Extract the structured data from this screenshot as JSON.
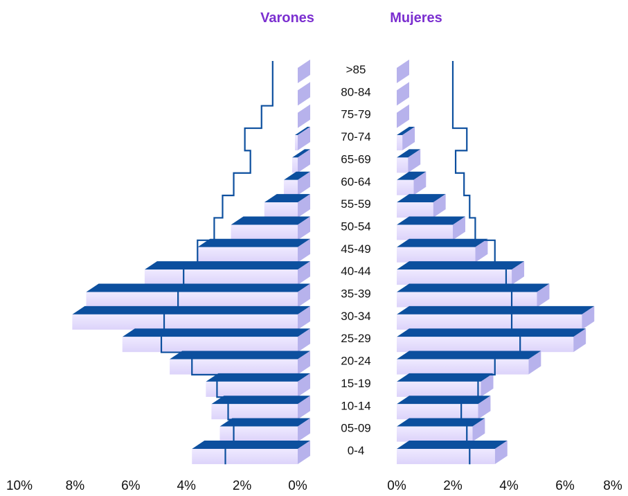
{
  "chart_data": {
    "type": "bar",
    "orientation": "horizontal-population-pyramid",
    "categories": [
      ">85",
      "80-84",
      "75-79",
      "70-74",
      "65-69",
      "60-64",
      "55-59",
      "50-54",
      "45-49",
      "40-44",
      "35-39",
      "30-34",
      "25-29",
      "20-24",
      "15-19",
      "10-14",
      "05-09",
      "0-4"
    ],
    "series": [
      {
        "name": "Varones",
        "values": [
          0.0,
          0.0,
          0.0,
          0.1,
          0.2,
          0.5,
          1.2,
          2.4,
          3.6,
          5.5,
          7.6,
          8.1,
          6.3,
          4.6,
          3.3,
          3.1,
          2.8,
          3.8
        ]
      },
      {
        "name": "Mujeres",
        "values": [
          0.0,
          0.0,
          0.0,
          0.2,
          0.4,
          0.6,
          1.3,
          2.0,
          2.8,
          4.1,
          5.0,
          6.6,
          6.3,
          4.7,
          3.0,
          2.9,
          2.7,
          3.5
        ]
      }
    ],
    "reference_outline": {
      "Varones": [
        0.9,
        0.9,
        1.3,
        1.9,
        1.7,
        2.3,
        2.7,
        3.0,
        3.6,
        4.1,
        4.3,
        4.8,
        4.9,
        3.8,
        2.9,
        2.5,
        2.3,
        2.6
      ],
      "Mujeres": [
        2.0,
        2.0,
        2.0,
        2.5,
        2.1,
        2.4,
        2.6,
        2.8,
        3.5,
        3.9,
        4.1,
        4.1,
        4.4,
        3.5,
        2.9,
        2.3,
        2.5,
        2.6
      ]
    },
    "xlim_left": [
      0,
      10
    ],
    "xlim_right": [
      0,
      8
    ],
    "tick_labels_left": [
      "10%",
      "8%",
      "6%",
      "4%",
      "2%",
      "0%"
    ],
    "tick_labels_right": [
      "0%",
      "2%",
      "4%",
      "6%",
      "8%"
    ],
    "colors": {
      "bar_face": "#e8e1fb",
      "bar_side": "#b7b2ec",
      "bar_top": "#0c4f9e",
      "outline": "#0c4f9e",
      "title": "#7b2fd0"
    }
  }
}
